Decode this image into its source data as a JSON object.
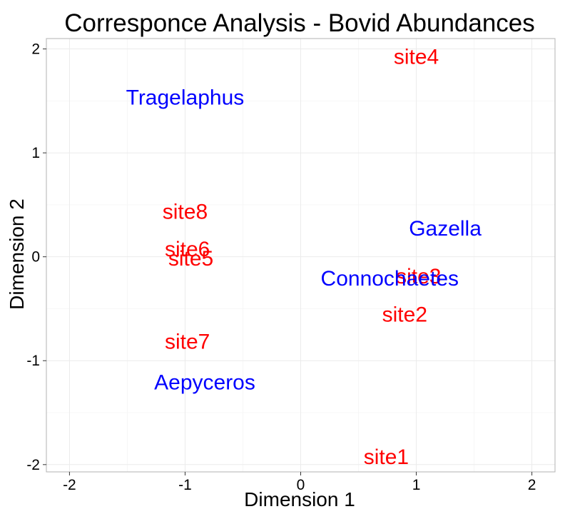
{
  "chart_data": {
    "type": "scatter",
    "title": "Corresponce Analysis - Bovid Abundances",
    "xlabel": "Dimension 1",
    "ylabel": "Dimension 2",
    "xlim": [
      -2.2,
      2.2
    ],
    "ylim": [
      -2.07,
      2.1
    ],
    "x_ticks": [
      -2,
      -1,
      0,
      1,
      2
    ],
    "y_ticks": [
      -2,
      -1,
      0,
      1,
      2
    ],
    "grid": true,
    "colors": {
      "sites": "#ff0000",
      "species": "#0000ff",
      "grid_major": "#ebebeb",
      "grid_minor": "#f5f5f5",
      "border": "#b3b3b3"
    },
    "series": [
      {
        "points": [
          {
            "label": "site1",
            "x": 0.74,
            "y": -1.93
          },
          {
            "label": "site2",
            "x": 0.9,
            "y": -0.56
          },
          {
            "label": "site3",
            "x": 1.02,
            "y": -0.19
          },
          {
            "label": "site4",
            "x": 1.0,
            "y": 1.92
          },
          {
            "label": "site5",
            "x": -0.95,
            "y": -0.02
          },
          {
            "label": "site6",
            "x": -0.98,
            "y": 0.07
          },
          {
            "label": "site7",
            "x": -0.98,
            "y": -0.82
          },
          {
            "label": "site8",
            "x": -1.0,
            "y": 0.43
          }
        ]
      },
      {
        "points": [
          {
            "label": "Tragelaphus",
            "x": -1.0,
            "y": 1.53
          },
          {
            "label": "Gazella",
            "x": 1.25,
            "y": 0.27
          },
          {
            "label": "Connochaetes",
            "x": 0.77,
            "y": -0.21
          },
          {
            "label": "Aepyceros",
            "x": -0.83,
            "y": -1.21
          }
        ]
      }
    ]
  }
}
